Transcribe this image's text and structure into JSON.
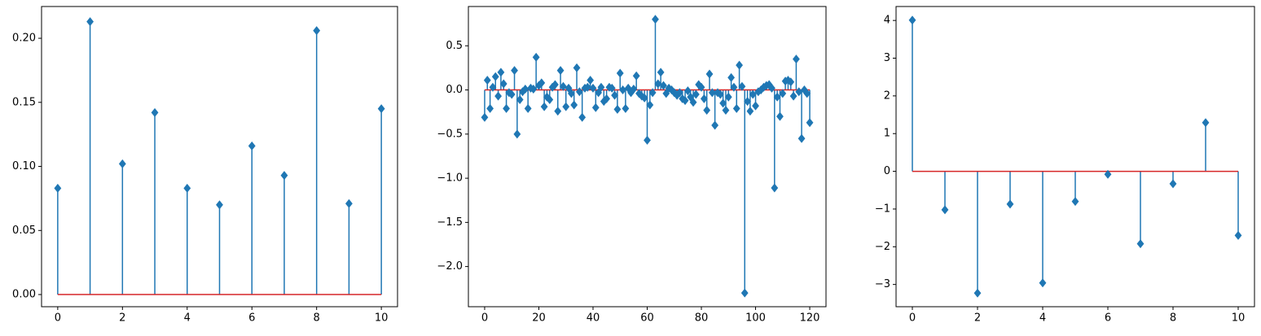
{
  "chart_data": [
    {
      "type": "stem",
      "color": "#1f77b4",
      "baseline_color": "#d62728",
      "marker": "D",
      "values": [
        0.083,
        0.213,
        0.102,
        0.142,
        0.083,
        0.07,
        0.116,
        0.093,
        0.206,
        0.071,
        0.145
      ],
      "xlim": [
        -0.5,
        10.5
      ],
      "xticks": [
        0,
        2,
        4,
        6,
        8,
        10
      ],
      "ylim": [
        -0.0095,
        0.2248
      ],
      "yticks": [
        {
          "value": 0,
          "label": "0.00"
        },
        {
          "value": 0.05,
          "label": "0.05"
        },
        {
          "value": 0.1,
          "label": "0.10"
        },
        {
          "value": 0.15,
          "label": "0.15"
        },
        {
          "value": 0.2,
          "label": "0.20"
        }
      ]
    },
    {
      "type": "stem",
      "color": "#1f77b4",
      "baseline_color": "#d62728",
      "marker": "D",
      "values": [
        -0.31,
        0.11,
        -0.21,
        0.03,
        0.15,
        -0.07,
        0.2,
        0.07,
        -0.21,
        -0.03,
        -0.05,
        0.22,
        -0.5,
        -0.11,
        -0.02,
        0.01,
        -0.21,
        0.02,
        0.01,
        0.37,
        0.05,
        0.08,
        -0.19,
        -0.08,
        -0.11,
        0.03,
        0.06,
        -0.24,
        0.22,
        0.04,
        -0.19,
        0.02,
        -0.04,
        -0.17,
        0.25,
        -0.02,
        -0.31,
        0.02,
        0.03,
        0.11,
        0.02,
        -0.2,
        -0.03,
        0.03,
        -0.13,
        -0.1,
        0.03,
        0.02,
        -0.06,
        -0.22,
        0.19,
        0.0,
        -0.21,
        0.02,
        -0.03,
        0.01,
        0.16,
        -0.04,
        -0.07,
        -0.09,
        -0.57,
        -0.17,
        -0.03,
        0.8,
        0.07,
        0.2,
        0.05,
        -0.04,
        0.02,
        0.0,
        -0.03,
        -0.06,
        -0.03,
        -0.1,
        -0.12,
        -0.01,
        -0.08,
        -0.14,
        -0.05,
        0.06,
        0.03,
        -0.1,
        -0.23,
        0.18,
        -0.03,
        -0.4,
        -0.03,
        -0.05,
        -0.15,
        -0.23,
        -0.08,
        0.14,
        0.03,
        -0.21,
        0.28,
        0.04,
        -2.3,
        -0.13,
        -0.24,
        -0.05,
        -0.18,
        -0.02,
        0.0,
        0.03,
        0.05,
        0.06,
        0.02,
        -1.11,
        -0.08,
        -0.3,
        -0.04,
        0.1,
        0.11,
        0.09,
        -0.07,
        0.35,
        -0.02,
        -0.55,
        0.0,
        -0.04,
        -0.37
      ],
      "xlim": [
        -6,
        126
      ],
      "xticks": [
        0,
        20,
        40,
        60,
        80,
        100,
        120
      ],
      "ylim": [
        -2.455,
        0.945
      ],
      "yticks": [
        {
          "value": -2.0,
          "label": "−2.0"
        },
        {
          "value": -1.5,
          "label": "−1.5"
        },
        {
          "value": -1.0,
          "label": "−1.0"
        },
        {
          "value": -0.5,
          "label": "−0.5"
        },
        {
          "value": 0,
          "label": "0.0"
        },
        {
          "value": 0.5,
          "label": "0.5"
        }
      ]
    },
    {
      "type": "stem",
      "color": "#1f77b4",
      "baseline_color": "#d62728",
      "marker": "D",
      "values": [
        4.01,
        -1.02,
        -3.23,
        -0.87,
        -2.96,
        -0.8,
        -0.08,
        -1.92,
        -0.33,
        1.29,
        -1.7
      ],
      "xlim": [
        -0.5,
        10.5
      ],
      "xticks": [
        0,
        2,
        4,
        6,
        8,
        10
      ],
      "ylim": [
        -3.59,
        4.37
      ],
      "yticks": [
        {
          "value": -3,
          "label": "−3"
        },
        {
          "value": -2,
          "label": "−2"
        },
        {
          "value": -1,
          "label": "−1"
        },
        0,
        1,
        2,
        3,
        4
      ]
    }
  ]
}
